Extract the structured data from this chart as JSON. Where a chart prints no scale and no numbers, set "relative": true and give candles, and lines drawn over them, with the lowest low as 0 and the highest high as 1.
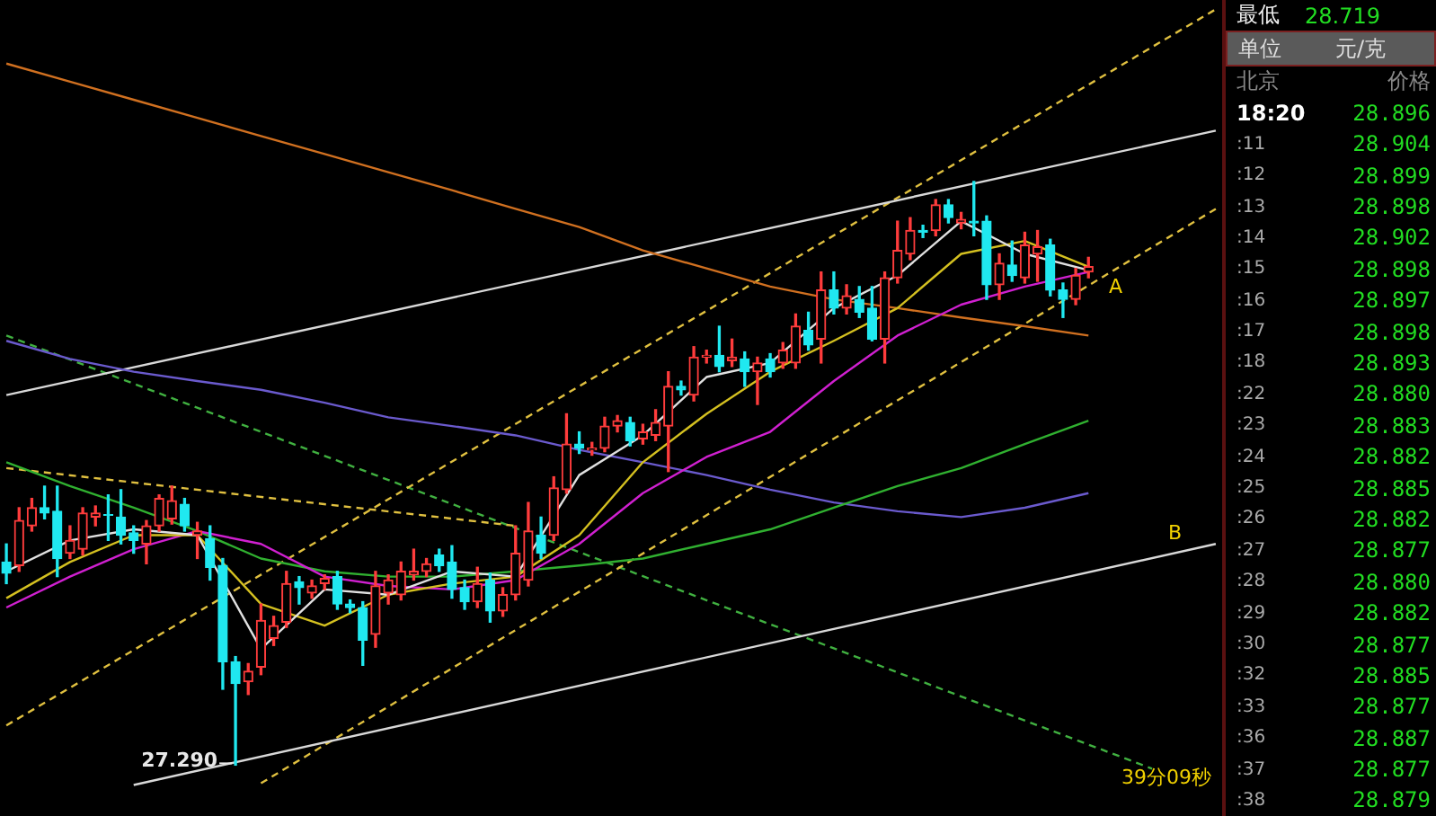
{
  "chart_data": [
    {
      "type": "candlestick",
      "relative": true,
      "categories": [
        null,
        null,
        null,
        null,
        null,
        null,
        null,
        null,
        null,
        null,
        null,
        null,
        null,
        null,
        null,
        null,
        null,
        null,
        null,
        null,
        null,
        null,
        null,
        null,
        null,
        null,
        null,
        null,
        null,
        null,
        null,
        null,
        null,
        null,
        null,
        null,
        null,
        null,
        null,
        null,
        null,
        null,
        null,
        null,
        null,
        null,
        null,
        null,
        null,
        null,
        null,
        null,
        null,
        null,
        null,
        null,
        null,
        null,
        null,
        null,
        null,
        null,
        null,
        null,
        null,
        null,
        null,
        null,
        null,
        null,
        null,
        null,
        null,
        null,
        null,
        null,
        null,
        null,
        null,
        null,
        null,
        null,
        null,
        null,
        null,
        null,
        null,
        null,
        null,
        null,
        null,
        null,
        null,
        null,
        null,
        null
      ],
      "ohlc": [
        [
          0.348,
          0.379,
          0.311,
          0.329
        ],
        [
          0.342,
          0.441,
          0.332,
          0.419
        ],
        [
          0.41,
          0.457,
          0.401,
          0.441
        ],
        [
          0.441,
          0.478,
          0.422,
          0.432
        ],
        [
          0.435,
          0.478,
          0.323,
          0.354
        ],
        [
          0.363,
          0.41,
          0.354,
          0.385
        ],
        [
          0.37,
          0.441,
          0.36,
          0.432
        ],
        [
          0.425,
          0.444,
          0.41,
          0.432
        ],
        [
          0.429,
          0.463,
          0.385,
          0.428
        ],
        [
          0.425,
          0.472,
          0.379,
          0.394
        ],
        [
          0.398,
          0.41,
          0.363,
          0.385
        ],
        [
          0.379,
          0.419,
          0.345,
          0.41
        ],
        [
          0.41,
          0.463,
          0.401,
          0.457
        ],
        [
          0.422,
          0.478,
          0.413,
          0.453
        ],
        [
          0.447,
          0.457,
          0.401,
          0.41
        ],
        [
          0.394,
          0.416,
          0.354,
          0.401
        ],
        [
          0.388,
          0.41,
          0.317,
          0.339
        ],
        [
          0.342,
          0.354,
          0.13,
          0.177
        ],
        [
          0.177,
          0.186,
          0,
          0.14
        ],
        [
          0.143,
          0.174,
          0.121,
          0.161
        ],
        [
          0.168,
          0.276,
          0.155,
          0.248
        ],
        [
          0.217,
          0.255,
          0.205,
          0.239
        ],
        [
          0.245,
          0.332,
          0.236,
          0.311
        ],
        [
          0.314,
          0.323,
          0.276,
          0.304
        ],
        [
          0.295,
          0.317,
          0.286,
          0.307
        ],
        [
          0.311,
          0.326,
          0.301,
          0.32
        ],
        [
          0.323,
          0.332,
          0.267,
          0.276
        ],
        [
          0.276,
          0.283,
          0.261,
          0.27
        ],
        [
          0.27,
          0.28,
          0.171,
          0.214
        ],
        [
          0.224,
          0.332,
          0.202,
          0.307
        ],
        [
          0.295,
          0.326,
          0.276,
          0.317
        ],
        [
          0.292,
          0.348,
          0.283,
          0.332
        ],
        [
          0.326,
          0.37,
          0.317,
          0.332
        ],
        [
          0.332,
          0.354,
          0.323,
          0.345
        ],
        [
          0.36,
          0.37,
          0.332,
          0.342
        ],
        [
          0.348,
          0.376,
          0.286,
          0.301
        ],
        [
          0.304,
          0.317,
          0.267,
          0.28
        ],
        [
          0.28,
          0.339,
          0.27,
          0.311
        ],
        [
          0.317,
          0.329,
          0.245,
          0.264
        ],
        [
          0.264,
          0.304,
          0.255,
          0.292
        ],
        [
          0.292,
          0.41,
          0.283,
          0.363
        ],
        [
          0.317,
          0.45,
          0.307,
          0.401
        ],
        [
          0.394,
          0.425,
          0.354,
          0.363
        ],
        [
          0.394,
          0.494,
          0.385,
          0.475
        ],
        [
          0.472,
          0.602,
          0.466,
          0.55
        ],
        [
          0.55,
          0.571,
          0.534,
          0.543
        ],
        [
          0.54,
          0.553,
          0.531,
          0.543
        ],
        [
          0.543,
          0.596,
          0.537,
          0.581
        ],
        [
          0.581,
          0.599,
          0.571,
          0.59
        ],
        [
          0.587,
          0.596,
          0.547,
          0.556
        ],
        [
          0.559,
          0.584,
          0.55,
          0.571
        ],
        [
          0.565,
          0.609,
          0.556,
          0.587
        ],
        [
          0.581,
          0.674,
          0.503,
          0.649
        ],
        [
          0.649,
          0.658,
          0.634,
          0.643
        ],
        [
          0.634,
          0.717,
          0.624,
          0.699
        ],
        [
          0.699,
          0.711,
          0.689,
          0.702
        ],
        [
          0.702,
          0.752,
          0.674,
          0.683
        ],
        [
          0.693,
          0.73,
          0.683,
          0.699
        ],
        [
          0.696,
          0.708,
          0.649,
          0.674
        ],
        [
          0.674,
          0.699,
          0.618,
          0.689
        ],
        [
          0.696,
          0.705,
          0.665,
          0.674
        ],
        [
          0.689,
          0.724,
          0.68,
          0.711
        ],
        [
          0.689,
          0.773,
          0.68,
          0.752
        ],
        [
          0.745,
          0.776,
          0.711,
          0.72
        ],
        [
          0.73,
          0.845,
          0.689,
          0.814
        ],
        [
          0.814,
          0.845,
          0.773,
          0.783
        ],
        [
          0.783,
          0.823,
          0.773,
          0.804
        ],
        [
          0.798,
          0.82,
          0.767,
          0.776
        ],
        [
          0.783,
          0.82,
          0.727,
          0.73
        ],
        [
          0.73,
          0.845,
          0.689,
          0.835
        ],
        [
          0.835,
          0.932,
          0.826,
          0.882
        ],
        [
          0.876,
          0.938,
          0.866,
          0.916
        ],
        [
          0.916,
          0.925,
          0.904,
          0.913
        ],
        [
          0.916,
          0.969,
          0.907,
          0.96
        ],
        [
          0.96,
          0.969,
          0.929,
          0.938
        ],
        [
          0.929,
          0.947,
          0.919,
          0.935
        ],
        [
          0.932,
          1,
          0.907,
          0.929
        ],
        [
          0.932,
          0.941,
          0.798,
          0.823
        ],
        [
          0.823,
          0.876,
          0.798,
          0.86
        ],
        [
          0.857,
          0.898,
          0.829,
          0.839
        ],
        [
          0.835,
          0.913,
          0.826,
          0.891
        ],
        [
          0.876,
          0.916,
          0.829,
          0.888
        ],
        [
          0.891,
          0.901,
          0.804,
          0.814
        ],
        [
          0.814,
          0.826,
          0.767,
          0.798
        ],
        [
          0.798,
          0.851,
          0.789,
          0.839
        ],
        [
          0.845,
          0.87,
          0.835,
          0.854
        ],
        null,
        null,
        null,
        null,
        null,
        null,
        null,
        null,
        null,
        null
      ],
      "series": [
        {
          "type": "line",
          "color": "#e0e0e0",
          "values": [
            0.332,
            null,
            null,
            null,
            null,
            0.385,
            null,
            null,
            null,
            null,
            0.404,
            null,
            null,
            null,
            null,
            0.394,
            null,
            null,
            null,
            null,
            0.199,
            null,
            null,
            null,
            null,
            0.301,
            null,
            null,
            null,
            null,
            0.292,
            null,
            null,
            null,
            null,
            0.332,
            null,
            null,
            null,
            null,
            0.323,
            null,
            null,
            null,
            null,
            0.497,
            null,
            null,
            null,
            null,
            0.565,
            null,
            null,
            null,
            null,
            0.665,
            null,
            null,
            null,
            null,
            0.689,
            null,
            null,
            null,
            null,
            0.783,
            null,
            null,
            null,
            null,
            0.839,
            null,
            null,
            null,
            null,
            0.932,
            null,
            null,
            null,
            null,
            0.876,
            null,
            null,
            null,
            null,
            0.848,
            null,
            null,
            null,
            null,
            null,
            null,
            null,
            null,
            null,
            null
          ]
        },
        {
          "type": "line",
          "color": "#d4c020",
          "values": [
            0.286,
            null,
            null,
            null,
            null,
            0.348,
            null,
            null,
            null,
            null,
            0.394,
            null,
            null,
            null,
            null,
            0.394,
            null,
            null,
            null,
            null,
            0.276,
            null,
            null,
            null,
            null,
            0.239,
            null,
            null,
            null,
            null,
            0.292,
            null,
            null,
            null,
            null,
            0.311,
            null,
            null,
            null,
            null,
            0.323,
            null,
            null,
            null,
            null,
            0.394,
            null,
            null,
            null,
            null,
            0.519,
            null,
            null,
            null,
            null,
            0.602,
            null,
            null,
            null,
            null,
            0.674,
            null,
            null,
            null,
            null,
            0.727,
            null,
            null,
            null,
            null,
            0.783,
            null,
            null,
            null,
            null,
            0.876,
            null,
            null,
            null,
            null,
            0.898,
            null,
            null,
            null,
            null,
            0.854,
            null,
            null,
            null,
            null,
            null,
            null,
            null,
            null,
            null,
            null
          ]
        },
        {
          "type": "line",
          "color": "#d020d0",
          "values": [
            0.27,
            null,
            null,
            null,
            null,
            0.323,
            null,
            null,
            null,
            null,
            0.37,
            null,
            null,
            null,
            null,
            0.401,
            null,
            null,
            null,
            null,
            0.379,
            null,
            null,
            null,
            null,
            0.323,
            null,
            null,
            null,
            null,
            0.307,
            null,
            null,
            null,
            null,
            0.301,
            null,
            null,
            null,
            null,
            0.317,
            null,
            null,
            null,
            null,
            0.379,
            null,
            null,
            null,
            null,
            0.466,
            null,
            null,
            null,
            null,
            0.528,
            null,
            null,
            null,
            null,
            0.571,
            null,
            null,
            null,
            null,
            0.658,
            null,
            null,
            null,
            null,
            0.736,
            null,
            null,
            null,
            null,
            0.789,
            null,
            null,
            null,
            null,
            0.82,
            null,
            null,
            null,
            null,
            0.845,
            null,
            null,
            null,
            null,
            null,
            null,
            null,
            null,
            null,
            null
          ]
        },
        {
          "type": "line",
          "color": "#30b030",
          "values": [
            0.519,
            null,
            null,
            null,
            null,
            0.478,
            null,
            null,
            null,
            null,
            0.441,
            null,
            null,
            null,
            null,
            0.401,
            null,
            null,
            null,
            null,
            0.354,
            null,
            null,
            null,
            null,
            0.332,
            null,
            null,
            null,
            null,
            0.323,
            null,
            null,
            null,
            null,
            0.323,
            null,
            null,
            null,
            null,
            0.332,
            null,
            null,
            null,
            null,
            0.342,
            null,
            null,
            null,
            null,
            0.354,
            null,
            null,
            null,
            null,
            0.379,
            null,
            null,
            null,
            null,
            0.404,
            null,
            null,
            null,
            null,
            0.441,
            null,
            null,
            null,
            null,
            0.478,
            null,
            null,
            null,
            null,
            0.509,
            null,
            null,
            null,
            null,
            0.55,
            null,
            null,
            null,
            null,
            0.59,
            null,
            null,
            null,
            null,
            null,
            null,
            null,
            null,
            null,
            null
          ]
        },
        {
          "type": "line",
          "color": "#6a5acd",
          "values": [
            0.727,
            null,
            null,
            null,
            null,
            0.696,
            null,
            null,
            null,
            null,
            0.674,
            null,
            null,
            null,
            null,
            0.658,
            null,
            null,
            null,
            null,
            0.643,
            null,
            null,
            null,
            null,
            0.621,
            null,
            null,
            null,
            null,
            0.596,
            null,
            null,
            null,
            null,
            0.581,
            null,
            null,
            null,
            null,
            0.565,
            null,
            null,
            null,
            null,
            0.54,
            null,
            null,
            null,
            null,
            0.519,
            null,
            null,
            null,
            null,
            0.497,
            null,
            null,
            null,
            null,
            0.472,
            null,
            null,
            null,
            null,
            0.45,
            null,
            null,
            null,
            null,
            0.435,
            null,
            null,
            null,
            null,
            0.425,
            null,
            null,
            null,
            null,
            0.441,
            null,
            null,
            null,
            null,
            0.466,
            null,
            null,
            null,
            null,
            null,
            null,
            null,
            null,
            null,
            null
          ]
        },
        {
          "type": "line",
          "color": "#d07020",
          "values": [
            1.202,
            null,
            null,
            null,
            null,
            1.171,
            null,
            null,
            null,
            null,
            1.14,
            null,
            null,
            null,
            null,
            1.109,
            null,
            null,
            null,
            null,
            1.078,
            null,
            null,
            null,
            null,
            1.047,
            null,
            null,
            null,
            null,
            1.016,
            null,
            null,
            null,
            null,
            0.985,
            null,
            null,
            null,
            null,
            0.953,
            null,
            null,
            null,
            null,
            0.922,
            null,
            null,
            null,
            null,
            0.882,
            null,
            null,
            null,
            null,
            0.851,
            null,
            null,
            null,
            null,
            0.82,
            null,
            null,
            null,
            null,
            0.798,
            null,
            null,
            null,
            null,
            0.783,
            null,
            null,
            null,
            null,
            0.767,
            null,
            null,
            null,
            null,
            0.752,
            null,
            null,
            null,
            null,
            0.736,
            null,
            null,
            null,
            null,
            null,
            null,
            null,
            null,
            null,
            null
          ]
        },
        {
          "type": "line",
          "color": "#d8d8d8",
          "values": [
            0.634,
            null,
            null,
            null,
            null,
            null,
            null,
            null,
            null,
            null,
            null,
            null,
            null,
            null,
            null,
            null,
            null,
            null,
            null,
            null,
            null,
            null,
            null,
            null,
            null,
            null,
            null,
            null,
            null,
            null,
            null,
            null,
            null,
            null,
            null,
            null,
            null,
            null,
            null,
            null,
            null,
            null,
            null,
            null,
            null,
            null,
            null,
            null,
            null,
            null,
            null,
            null,
            null,
            null,
            null,
            null,
            null,
            null,
            null,
            null,
            null,
            null,
            null,
            null,
            null,
            null,
            null,
            null,
            null,
            null,
            null,
            null,
            null,
            null,
            null,
            null,
            null,
            null,
            null,
            null,
            null,
            null,
            null,
            null,
            null,
            null,
            null,
            null,
            null,
            null,
            null,
            null,
            null,
            null,
            null,
            1.087
          ]
        },
        {
          "type": "line",
          "color": "#d8d8d8",
          "values": [
            null,
            null,
            null,
            null,
            null,
            null,
            null,
            null,
            null,
            null,
            -0.034,
            null,
            null,
            null,
            null,
            null,
            null,
            null,
            null,
            null,
            null,
            null,
            null,
            null,
            null,
            null,
            null,
            null,
            null,
            null,
            null,
            null,
            null,
            null,
            null,
            null,
            null,
            null,
            null,
            null,
            null,
            null,
            null,
            null,
            null,
            null,
            null,
            null,
            null,
            null,
            null,
            null,
            null,
            null,
            null,
            null,
            null,
            null,
            null,
            null,
            null,
            null,
            null,
            null,
            null,
            null,
            null,
            null,
            null,
            null,
            null,
            null,
            null,
            null,
            null,
            null,
            null,
            null,
            null,
            null,
            null,
            null,
            null,
            null,
            null,
            null,
            null,
            null,
            null,
            null,
            null,
            null,
            null,
            null,
            null,
            0.379
          ]
        },
        {
          "type": "line",
          "color": "#e0c040",
          "line_style": "dashed",
          "values": [
            0.068,
            null,
            null,
            null,
            null,
            null,
            null,
            null,
            null,
            null,
            null,
            null,
            null,
            null,
            null,
            null,
            null,
            null,
            null,
            null,
            null,
            null,
            null,
            null,
            null,
            null,
            null,
            null,
            null,
            null,
            null,
            null,
            null,
            null,
            null,
            null,
            null,
            null,
            null,
            null,
            null,
            null,
            null,
            null,
            null,
            null,
            null,
            null,
            null,
            null,
            null,
            null,
            null,
            null,
            null,
            null,
            null,
            null,
            null,
            null,
            null,
            null,
            null,
            null,
            null,
            null,
            null,
            null,
            null,
            null,
            null,
            null,
            null,
            null,
            null,
            null,
            null,
            null,
            null,
            null,
            null,
            null,
            null,
            null,
            null,
            null,
            null,
            null,
            null,
            null,
            null,
            null,
            null,
            null,
            null,
            1.295
          ]
        },
        {
          "type": "line",
          "color": "#e0c040",
          "line_style": "dashed",
          "values": [
            null,
            null,
            null,
            null,
            null,
            null,
            null,
            null,
            null,
            null,
            null,
            null,
            null,
            null,
            null,
            null,
            null,
            null,
            null,
            null,
            -0.031,
            null,
            null,
            null,
            null,
            null,
            null,
            null,
            null,
            null,
            null,
            null,
            null,
            null,
            null,
            null,
            null,
            null,
            null,
            null,
            null,
            null,
            null,
            null,
            null,
            null,
            null,
            null,
            null,
            null,
            null,
            null,
            null,
            null,
            null,
            null,
            null,
            null,
            null,
            null,
            null,
            null,
            null,
            null,
            null,
            null,
            null,
            null,
            null,
            null,
            null,
            null,
            null,
            null,
            null,
            null,
            null,
            null,
            null,
            null,
            null,
            null,
            null,
            null,
            null,
            null,
            null,
            null,
            null,
            null,
            null,
            null,
            null,
            null,
            null,
            0.953
          ]
        },
        {
          "type": "line",
          "color": "#e0c040",
          "line_style": "dashed",
          "values": [
            0.509,
            null,
            null,
            null,
            null,
            null,
            null,
            null,
            null,
            null,
            null,
            null,
            null,
            null,
            null,
            null,
            null,
            null,
            null,
            null,
            null,
            null,
            null,
            null,
            null,
            null,
            null,
            null,
            null,
            null,
            null,
            null,
            null,
            null,
            null,
            null,
            null,
            null,
            null,
            null,
            0.41,
            null,
            null,
            null,
            null,
            null,
            null,
            null,
            null,
            null,
            null,
            null,
            null,
            null,
            null,
            null,
            null,
            null,
            null,
            null,
            null,
            null,
            null,
            null,
            null,
            null,
            null,
            null,
            null,
            null,
            null,
            null,
            null,
            null,
            null,
            null,
            null,
            null,
            null,
            null,
            null,
            null,
            null,
            null,
            null,
            null,
            null,
            null,
            null,
            null,
            null,
            null,
            null,
            null,
            null,
            null
          ]
        },
        {
          "type": "line",
          "color": "#40b040",
          "line_style": "dashed",
          "values": [
            0.736,
            null,
            null,
            null,
            null,
            null,
            null,
            null,
            null,
            null,
            null,
            null,
            null,
            null,
            null,
            null,
            null,
            null,
            null,
            null,
            null,
            null,
            null,
            null,
            null,
            null,
            null,
            null,
            null,
            null,
            null,
            null,
            null,
            null,
            null,
            null,
            null,
            null,
            null,
            null,
            null,
            null,
            null,
            null,
            null,
            null,
            null,
            null,
            null,
            null,
            null,
            null,
            null,
            null,
            null,
            null,
            null,
            null,
            null,
            null,
            null,
            null,
            null,
            null,
            null,
            null,
            null,
            null,
            null,
            null,
            null,
            null,
            null,
            null,
            null,
            null,
            null,
            null,
            null,
            null,
            null,
            null,
            null,
            null,
            null,
            null,
            null,
            null,
            null,
            null,
            -0.006,
            null,
            null,
            null,
            null,
            null
          ]
        }
      ],
      "annotations": [
        {
          "text": "27.290",
          "y": 0
        },
        "A",
        "B",
        "39分09秒"
      ]
    },
    {
      "type": "other",
      "annotations": [
        "最低",
        "28.719",
        "单位",
        "元/克",
        "北京",
        "价格"
      ],
      "categories": [
        "18:20",
        ":11",
        ":12",
        ":13",
        ":14",
        ":15",
        ":16",
        ":17",
        ":18",
        ":22",
        ":23",
        ":24",
        ":25",
        ":26",
        ":27",
        ":28",
        ":29",
        ":30",
        ":32",
        ":33",
        ":36",
        ":37",
        ":38"
      ],
      "value_labels": [
        "28.896",
        "28.904",
        "28.899",
        "28.898",
        "28.902",
        "28.898",
        "28.897",
        "28.898",
        "28.893",
        "28.880",
        "28.883",
        "28.882",
        "28.885",
        "28.882",
        "28.877",
        "28.880",
        "28.882",
        "28.877",
        "28.885",
        "28.877",
        "28.887",
        "28.877",
        "28.879"
      ]
    }
  ]
}
